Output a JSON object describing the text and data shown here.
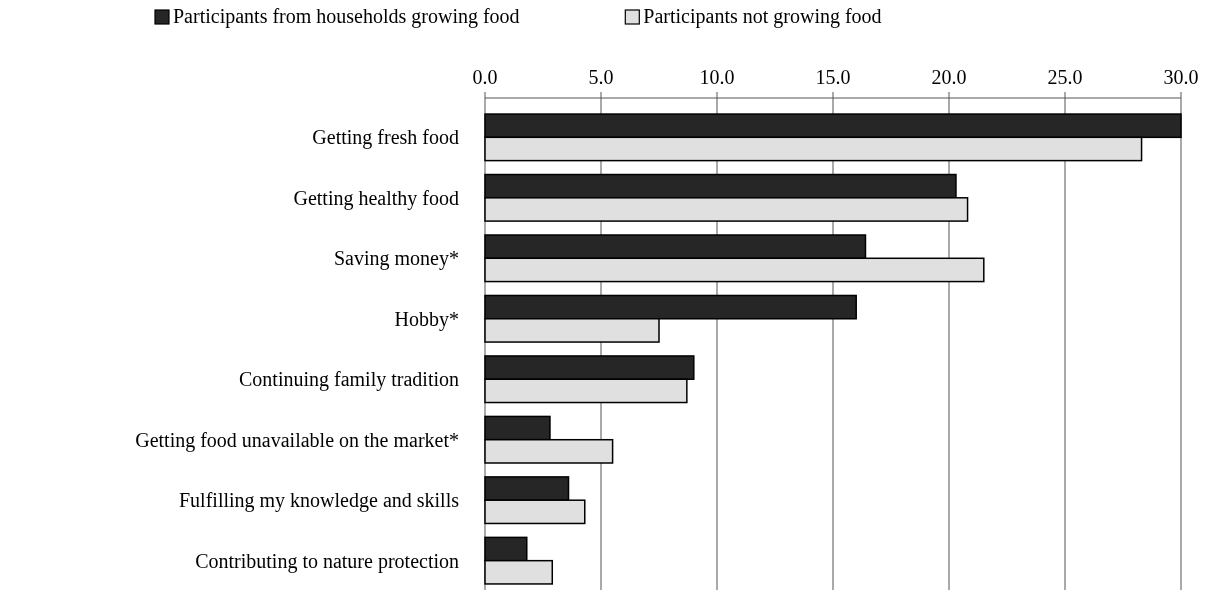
{
  "chart_data": {
    "type": "bar",
    "orientation": "horizontal",
    "categories": [
      "Getting fresh food",
      "Getting healthy food",
      "Saving money*",
      "Hobby*",
      "Continuing family tradition",
      "Getting food unavailable on the market*",
      "Fulfilling my knowledge and skills",
      "Contributing to nature protection"
    ],
    "series": [
      {
        "name": "Participants from households growing food",
        "color": "#262626",
        "values": [
          30.0,
          20.3,
          16.4,
          16.0,
          9.0,
          2.8,
          3.6,
          1.8
        ]
      },
      {
        "name": "Participants not growing food",
        "color": "#e0e0e0",
        "values": [
          28.3,
          20.8,
          21.5,
          7.5,
          8.7,
          5.5,
          4.3,
          2.9
        ]
      }
    ],
    "xlim": [
      0,
      30
    ],
    "xticks": [
      {
        "value": 0,
        "label": "0.0"
      },
      {
        "value": 5,
        "label": "5.0"
      },
      {
        "value": 10,
        "label": "10.0"
      },
      {
        "value": 15,
        "label": "15.0"
      },
      {
        "value": 20,
        "label": "20.0"
      },
      {
        "value": 25,
        "label": "25.0"
      },
      {
        "value": 30,
        "label": "30.0"
      }
    ],
    "grid": "x",
    "legend": "top"
  }
}
